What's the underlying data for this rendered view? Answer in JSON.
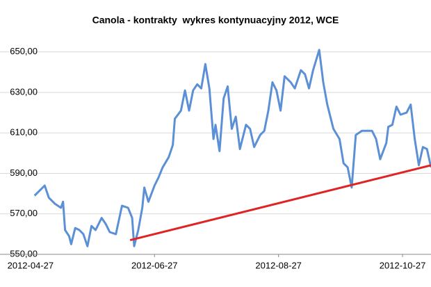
{
  "chart_data": {
    "type": "line",
    "title": "Canola - kontrakty  wykres kontynuacyjny 2012, WCE",
    "x": [
      "2012-04-29",
      "2012-05-02",
      "2012-05-04",
      "2012-05-06",
      "2012-05-09",
      "2012-05-12",
      "2012-05-13",
      "2012-05-14",
      "2012-05-16",
      "2012-05-17",
      "2012-05-19",
      "2012-05-21",
      "2012-05-23",
      "2012-05-25",
      "2012-05-27",
      "2012-05-29",
      "2012-06-01",
      "2012-06-03",
      "2012-06-05",
      "2012-06-08",
      "2012-06-11",
      "2012-06-14",
      "2012-06-16",
      "2012-06-17",
      "2012-06-19",
      "2012-06-21",
      "2012-06-22",
      "2012-06-24",
      "2012-06-27",
      "2012-06-29",
      "2012-07-01",
      "2012-07-04",
      "2012-07-06",
      "2012-07-07",
      "2012-07-10",
      "2012-07-12",
      "2012-07-14",
      "2012-07-16",
      "2012-07-18",
      "2012-07-20",
      "2012-07-22",
      "2012-07-24",
      "2012-07-26",
      "2012-07-27",
      "2012-07-29",
      "2012-07-31",
      "2012-08-02",
      "2012-08-04",
      "2012-08-06",
      "2012-08-08",
      "2012-08-11",
      "2012-08-13",
      "2012-08-15",
      "2012-08-18",
      "2012-08-20",
      "2012-08-22",
      "2012-08-24",
      "2012-08-26",
      "2012-08-28",
      "2012-08-30",
      "2012-09-02",
      "2012-09-04",
      "2012-09-07",
      "2012-09-09",
      "2012-09-11",
      "2012-09-13",
      "2012-09-16",
      "2012-09-18",
      "2012-09-20",
      "2012-09-23",
      "2012-09-26",
      "2012-09-28",
      "2012-09-30",
      "2012-10-02",
      "2012-10-04",
      "2012-10-07",
      "2012-10-09",
      "2012-10-12",
      "2012-10-14",
      "2012-10-16",
      "2012-10-19",
      "2012-10-20",
      "2012-10-22",
      "2012-10-24",
      "2012-10-26",
      "2012-10-29",
      "2012-10-31",
      "2012-11-02",
      "2012-11-04",
      "2012-11-06",
      "2012-11-08",
      "2012-11-10"
    ],
    "series": [
      {
        "color": "#5b8fd6",
        "values": [
          579,
          582,
          584,
          578,
          575,
          573,
          576,
          562,
          559,
          555,
          563,
          562,
          560,
          554,
          564,
          562,
          568,
          565,
          561,
          560,
          574,
          573,
          568,
          554,
          562,
          573,
          583,
          576,
          584,
          588,
          593,
          598,
          604,
          617,
          621,
          631,
          621,
          631,
          634,
          632,
          644,
          632,
          607,
          614,
          601,
          627,
          633,
          612,
          618,
          602,
          614,
          612,
          603,
          609,
          611,
          621,
          635,
          631,
          621,
          638,
          635,
          632,
          641,
          639,
          632,
          641,
          651,
          635,
          624,
          612,
          607,
          595,
          593,
          583,
          609,
          611,
          611,
          611,
          607,
          597,
          605,
          613,
          614,
          623,
          619,
          620,
          624,
          607,
          594,
          603,
          602,
          593
        ]
      }
    ],
    "trendline": {
      "color": "#e02424",
      "x": [
        "2012-06-15",
        "2012-11-10"
      ],
      "values": [
        557,
        594
      ]
    },
    "xlim": [
      "2012-04-12",
      "2012-11-10"
    ],
    "xticks": [
      "2012-04-27",
      "2012-06-27",
      "2012-08-27",
      "2012-10-27"
    ],
    "ylim": [
      550,
      653
    ],
    "yticks": [
      {
        "value": 550,
        "label": "550,00"
      },
      {
        "value": 570,
        "label": "570,00"
      },
      {
        "value": 590,
        "label": "590,00"
      },
      {
        "value": 610,
        "label": "610,00"
      },
      {
        "value": 630,
        "label": "630,00"
      },
      {
        "value": 650,
        "label": "650,00"
      }
    ],
    "grid": true
  }
}
